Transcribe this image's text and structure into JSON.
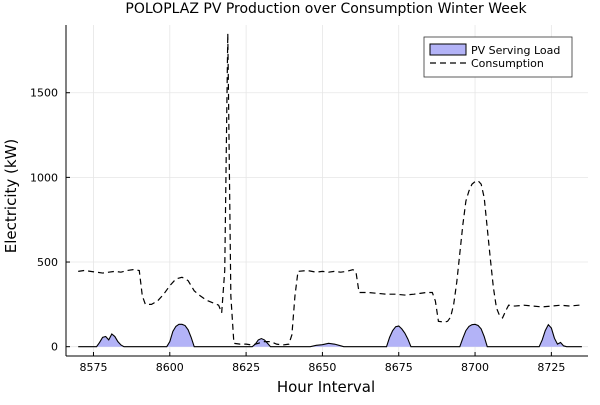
{
  "chart_data": {
    "type": "area",
    "title": "POLOPLAZ PV Production over Consumption Winter Week",
    "xlabel": "Hour Interval",
    "ylabel": "Electricity (kW)",
    "xlim": [
      8566,
      8737
    ],
    "ylim": [
      -55,
      1900
    ],
    "xticks": [
      8575,
      8600,
      8625,
      8650,
      8675,
      8700,
      8725
    ],
    "yticks": [
      0,
      500,
      1000,
      1500
    ],
    "grid": true,
    "legend_position": "top-right",
    "colors": {
      "pv_fill": "#b3b3f7",
      "pv_line": "#000000",
      "consumption": "#000000",
      "grid": "#e6e6e6"
    },
    "series": [
      {
        "name": "PV Serving Load",
        "style": "filled-area",
        "points": [
          [
            8570,
            0
          ],
          [
            8576,
            0
          ],
          [
            8577,
            25
          ],
          [
            8578,
            55
          ],
          [
            8579,
            60
          ],
          [
            8580,
            40
          ],
          [
            8581,
            75
          ],
          [
            8582,
            60
          ],
          [
            8583,
            30
          ],
          [
            8584,
            10
          ],
          [
            8585,
            0
          ],
          [
            8599,
            0
          ],
          [
            8600,
            30
          ],
          [
            8601,
            90
          ],
          [
            8602,
            120
          ],
          [
            8603,
            132
          ],
          [
            8604,
            132
          ],
          [
            8605,
            125
          ],
          [
            8606,
            100
          ],
          [
            8607,
            55
          ],
          [
            8608,
            0
          ],
          [
            8627,
            0
          ],
          [
            8628,
            15
          ],
          [
            8629,
            40
          ],
          [
            8630,
            48
          ],
          [
            8631,
            40
          ],
          [
            8632,
            20
          ],
          [
            8633,
            0
          ],
          [
            8646,
            0
          ],
          [
            8648,
            8
          ],
          [
            8650,
            12
          ],
          [
            8652,
            20
          ],
          [
            8654,
            15
          ],
          [
            8656,
            5
          ],
          [
            8657,
            0
          ],
          [
            8671,
            0
          ],
          [
            8672,
            55
          ],
          [
            8673,
            95
          ],
          [
            8674,
            118
          ],
          [
            8675,
            122
          ],
          [
            8676,
            105
          ],
          [
            8677,
            80
          ],
          [
            8678,
            45
          ],
          [
            8679,
            0
          ],
          [
            8695,
            0
          ],
          [
            8696,
            50
          ],
          [
            8697,
            95
          ],
          [
            8698,
            120
          ],
          [
            8699,
            130
          ],
          [
            8700,
            132
          ],
          [
            8701,
            125
          ],
          [
            8702,
            105
          ],
          [
            8703,
            60
          ],
          [
            8704,
            0
          ],
          [
            8721,
            0
          ],
          [
            8722,
            40
          ],
          [
            8723,
            95
          ],
          [
            8724,
            130
          ],
          [
            8725,
            110
          ],
          [
            8726,
            50
          ],
          [
            8727,
            15
          ],
          [
            8728,
            25
          ],
          [
            8729,
            5
          ],
          [
            8730,
            0
          ],
          [
            8735,
            0
          ]
        ]
      },
      {
        "name": "Consumption",
        "style": "dashed-line",
        "points": [
          [
            8570,
            445
          ],
          [
            8572,
            450
          ],
          [
            8574,
            445
          ],
          [
            8576,
            440
          ],
          [
            8578,
            435
          ],
          [
            8580,
            440
          ],
          [
            8582,
            445
          ],
          [
            8584,
            440
          ],
          [
            8586,
            450
          ],
          [
            8588,
            455
          ],
          [
            8590,
            450
          ],
          [
            8591,
            300
          ],
          [
            8592,
            250
          ],
          [
            8594,
            250
          ],
          [
            8596,
            270
          ],
          [
            8598,
            310
          ],
          [
            8600,
            360
          ],
          [
            8602,
            400
          ],
          [
            8604,
            410
          ],
          [
            8606,
            390
          ],
          [
            8608,
            330
          ],
          [
            8610,
            300
          ],
          [
            8612,
            275
          ],
          [
            8614,
            260
          ],
          [
            8616,
            245
          ],
          [
            8617,
            200
          ],
          [
            8618,
            450
          ],
          [
            8619,
            1850
          ],
          [
            8620,
            300
          ],
          [
            8621,
            20
          ],
          [
            8623,
            15
          ],
          [
            8625,
            15
          ],
          [
            8627,
            10
          ],
          [
            8629,
            20
          ],
          [
            8631,
            30
          ],
          [
            8633,
            30
          ],
          [
            8635,
            15
          ],
          [
            8637,
            10
          ],
          [
            8639,
            15
          ],
          [
            8640,
            70
          ],
          [
            8641,
            300
          ],
          [
            8642,
            445
          ],
          [
            8645,
            450
          ],
          [
            8648,
            440
          ],
          [
            8650,
            445
          ],
          [
            8652,
            440
          ],
          [
            8654,
            445
          ],
          [
            8656,
            440
          ],
          [
            8658,
            445
          ],
          [
            8660,
            455
          ],
          [
            8661,
            440
          ],
          [
            8662,
            320
          ],
          [
            8665,
            320
          ],
          [
            8668,
            315
          ],
          [
            8671,
            310
          ],
          [
            8674,
            310
          ],
          [
            8677,
            305
          ],
          [
            8680,
            310
          ],
          [
            8682,
            315
          ],
          [
            8684,
            320
          ],
          [
            8686,
            320
          ],
          [
            8687,
            270
          ],
          [
            8688,
            150
          ],
          [
            8690,
            145
          ],
          [
            8691,
            150
          ],
          [
            8692,
            175
          ],
          [
            8693,
            250
          ],
          [
            8694,
            380
          ],
          [
            8695,
            550
          ],
          [
            8696,
            720
          ],
          [
            8697,
            860
          ],
          [
            8698,
            920
          ],
          [
            8699,
            960
          ],
          [
            8700,
            975
          ],
          [
            8701,
            980
          ],
          [
            8702,
            960
          ],
          [
            8703,
            880
          ],
          [
            8704,
            700
          ],
          [
            8705,
            520
          ],
          [
            8706,
            350
          ],
          [
            8707,
            230
          ],
          [
            8708,
            185
          ],
          [
            8709,
            170
          ],
          [
            8710,
            210
          ],
          [
            8711,
            245
          ],
          [
            8713,
            240
          ],
          [
            8716,
            245
          ],
          [
            8719,
            240
          ],
          [
            8722,
            235
          ],
          [
            8725,
            240
          ],
          [
            8728,
            245
          ],
          [
            8731,
            240
          ],
          [
            8734,
            245
          ],
          [
            8735,
            245
          ]
        ]
      }
    ]
  }
}
